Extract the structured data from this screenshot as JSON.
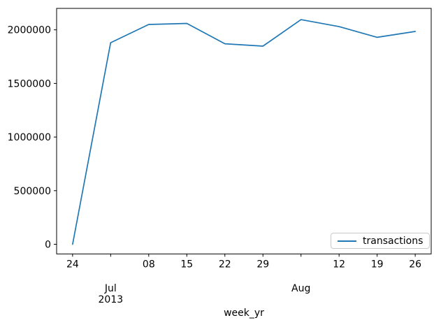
{
  "figure": {
    "background": "#ffffff"
  },
  "chart_data": {
    "type": "line",
    "title": "",
    "xlabel": "week_yr",
    "ylabel": "",
    "legend_label": "transactions",
    "legend_position": "lower right",
    "line_color": "#1f77b4",
    "axis_color": "#000000",
    "grid": false,
    "x": [
      "2013-06-24",
      "2013-07-01",
      "2013-07-08",
      "2013-07-15",
      "2013-07-22",
      "2013-07-29",
      "2013-08-05",
      "2013-08-12",
      "2013-08-19",
      "2013-08-26"
    ],
    "series": [
      {
        "name": "transactions",
        "values": [
          0,
          1880000,
          2050000,
          2060000,
          1870000,
          1848000,
          2095000,
          2030000,
          1930000,
          1985000
        ]
      }
    ],
    "ylim": [
      -90000,
      2200000
    ],
    "xlim": [
      -0.42,
      9.42
    ],
    "yticks": [
      0,
      500000,
      1000000,
      1500000,
      2000000
    ],
    "ytick_labels": [
      "0",
      "500000",
      "1000000",
      "1500000",
      "2000000"
    ],
    "xtick_labels": [
      "24",
      "",
      "08",
      "15",
      "22",
      "29",
      "",
      "12",
      "19",
      "26"
    ],
    "xtick_secondary": [
      {
        "index": 1,
        "lines": [
          "Jul",
          "2013"
        ]
      },
      {
        "index": 6,
        "lines": [
          "Aug"
        ]
      }
    ]
  }
}
